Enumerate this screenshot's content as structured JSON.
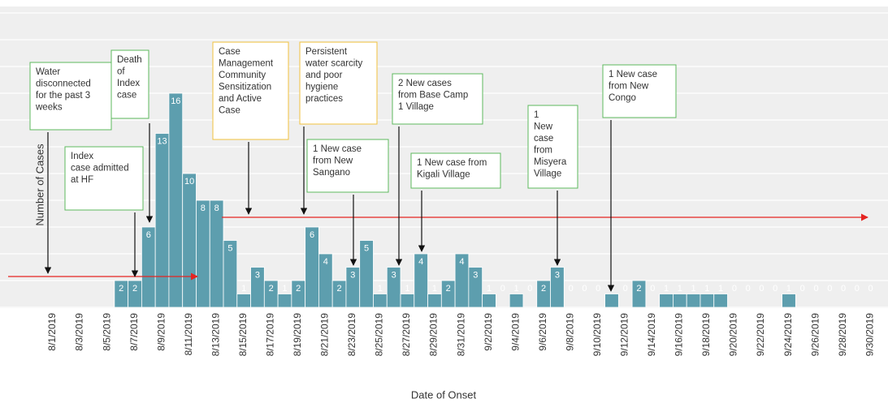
{
  "chart_data": {
    "type": "bar",
    "x_label": "Date of Onset",
    "y_label": "Number of Cases",
    "color": "#5d9eae",
    "grid": true,
    "ylim": [
      0,
      22
    ],
    "yticks": [
      0,
      2,
      4,
      6,
      8,
      10,
      12,
      14,
      16,
      18,
      20,
      22
    ],
    "categories": [
      "8/1/2019",
      null,
      "8/3/2019",
      null,
      "8/5/2019",
      null,
      "8/7/2019",
      null,
      "8/9/2019",
      null,
      "8/11/2019",
      null,
      "8/13/2019",
      null,
      "8/15/2019",
      null,
      "8/17/2019",
      null,
      "8/19/2019",
      null,
      "8/21/2019",
      null,
      "8/23/2019",
      null,
      "8/25/2019",
      null,
      "8/27/2019",
      null,
      "8/29/2019",
      null,
      "8/31/2019",
      null,
      "9/2/2019",
      null,
      "9/4/2019",
      null,
      "9/6/2019",
      null,
      "9/8/2019",
      null,
      "9/10/2019",
      null,
      "9/12/2019",
      null,
      "9/14/2019",
      null,
      "9/16/2019",
      null,
      "9/18/2019",
      null,
      "9/20/2019",
      null,
      "9/22/2019",
      null,
      "9/24/2019",
      null,
      "9/26/2019",
      null,
      "9/28/2019",
      null,
      "9/30/2019"
    ],
    "values": [
      null,
      null,
      null,
      null,
      null,
      2,
      2,
      6,
      13,
      16,
      10,
      8,
      8,
      5,
      1,
      3,
      2,
      1,
      2,
      6,
      4,
      2,
      3,
      5,
      1,
      3,
      1,
      4,
      1,
      2,
      4,
      3,
      1,
      0,
      1,
      0,
      2,
      3,
      0,
      0,
      0,
      1,
      0,
      2,
      0,
      1,
      1,
      1,
      1,
      1,
      0,
      0,
      0,
      0,
      1,
      0,
      0,
      0,
      0,
      0,
      0
    ],
    "annotations": [
      {
        "lines": [
          "Water",
          "disconnected",
          "for the past 3",
          "weeks"
        ],
        "border": "#5cb85c"
      },
      {
        "lines": [
          "Index",
          "case admitted",
          "at HF"
        ],
        "border": "#5cb85c"
      },
      {
        "lines": [
          "Death",
          "of",
          "Index",
          "case"
        ],
        "border": "#5cb85c"
      },
      {
        "lines": [
          "Case",
          "Management",
          "Community",
          "Sensitization",
          "and Active",
          "Case"
        ],
        "border": "#f0c23c"
      },
      {
        "lines": [
          "Persistent",
          "water scarcity",
          "and poor",
          "hygiene",
          "practices"
        ],
        "border": "#f0c23c"
      },
      {
        "lines": [
          "1 New case",
          "from New",
          "Sangano"
        ],
        "border": "#5cb85c"
      },
      {
        "lines": [
          "2 New cases",
          "from Base Camp",
          "1 Village"
        ],
        "border": "#5cb85c"
      },
      {
        "lines": [
          "1 New case from",
          "Kigali Village"
        ],
        "border": "#5cb85c"
      },
      {
        "lines": [
          "1",
          "New",
          "case",
          "from",
          "Misyera",
          "Village"
        ],
        "border": "#5cb85c"
      },
      {
        "lines": [
          "1 New case",
          "from New",
          "Congo"
        ],
        "border": "#5cb85c"
      }
    ]
  }
}
